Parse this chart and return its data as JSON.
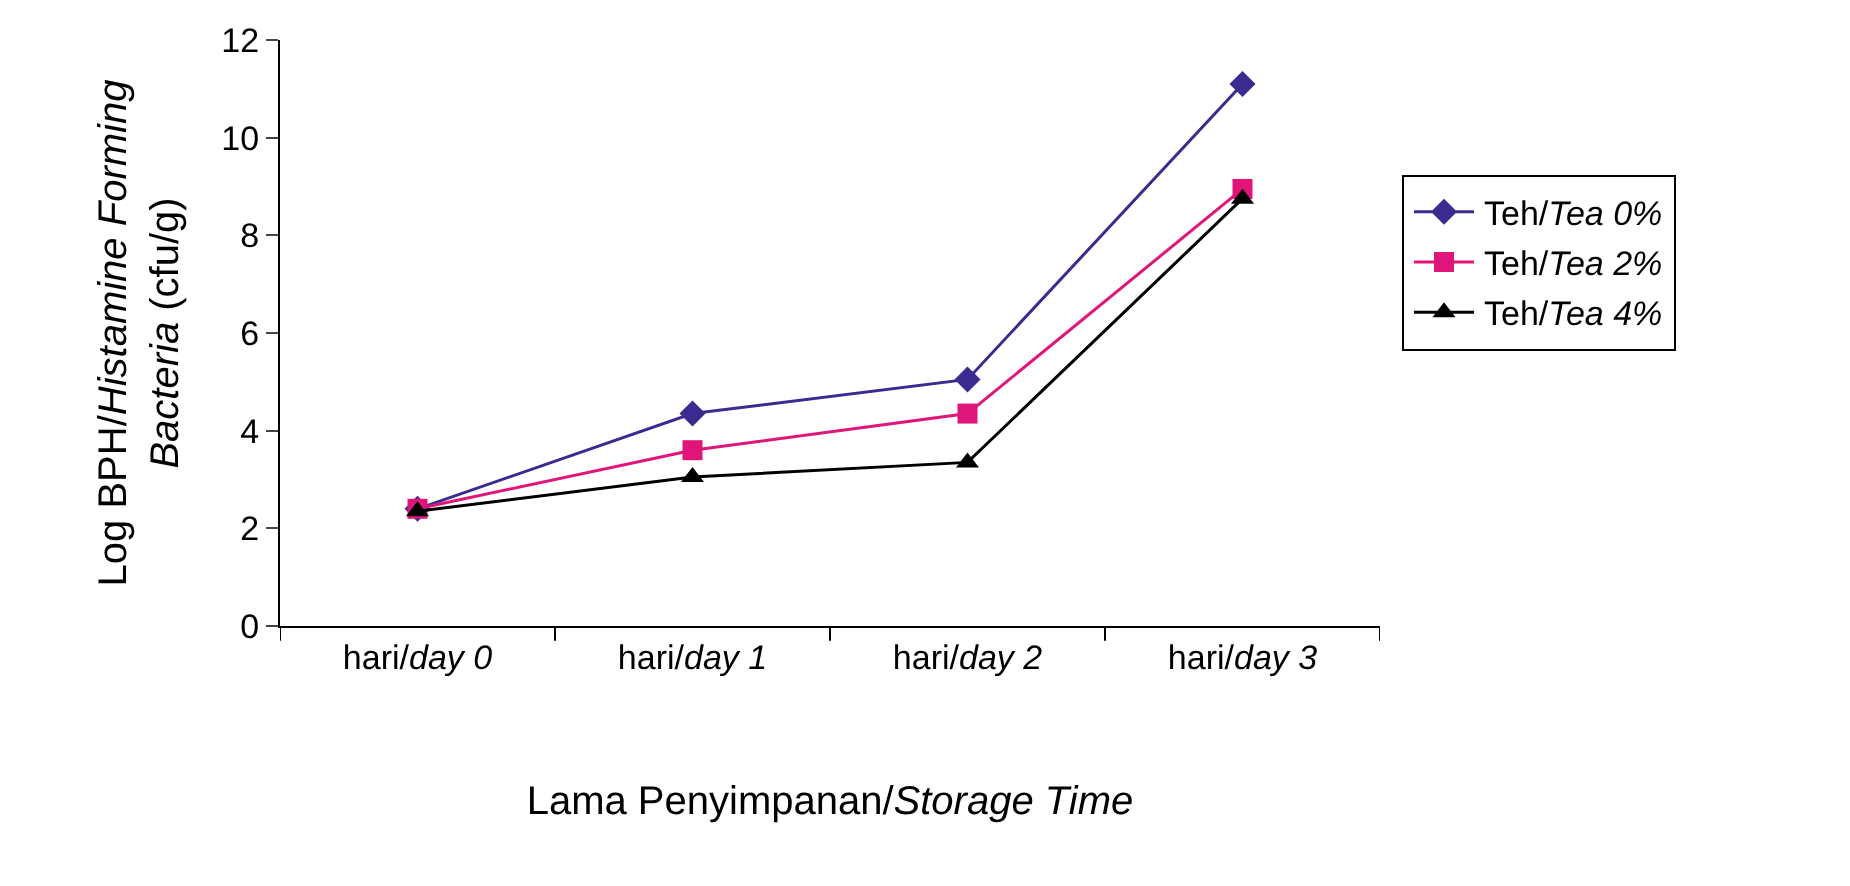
{
  "chart_data": {
    "type": "line",
    "xlabel": "Lama Penyimpanan/Storage Time",
    "ylabel": "Log BPH/Histamine Forming\nBacteria (cfu/g)",
    "categories": [
      "hari/day 0",
      "hari/day 1",
      "hari/day 2",
      "hari/day 3"
    ],
    "series": [
      {
        "name": "Teh/Tea 0%",
        "color": "#3b2a8f",
        "marker": "diamond",
        "values": [
          2.4,
          4.35,
          5.05,
          11.1
        ]
      },
      {
        "name": "Teh/Tea 2%",
        "color": "#e0157a",
        "marker": "square",
        "values": [
          2.4,
          3.6,
          4.35,
          8.95
        ]
      },
      {
        "name": "Teh/Tea 4%",
        "color": "#000000",
        "marker": "triangle",
        "values": [
          2.35,
          3.05,
          3.35,
          8.75
        ]
      }
    ],
    "ylim": [
      0,
      12
    ],
    "yticks": [
      0,
      2,
      4,
      6,
      8,
      10,
      12
    ],
    "legend": "right"
  }
}
